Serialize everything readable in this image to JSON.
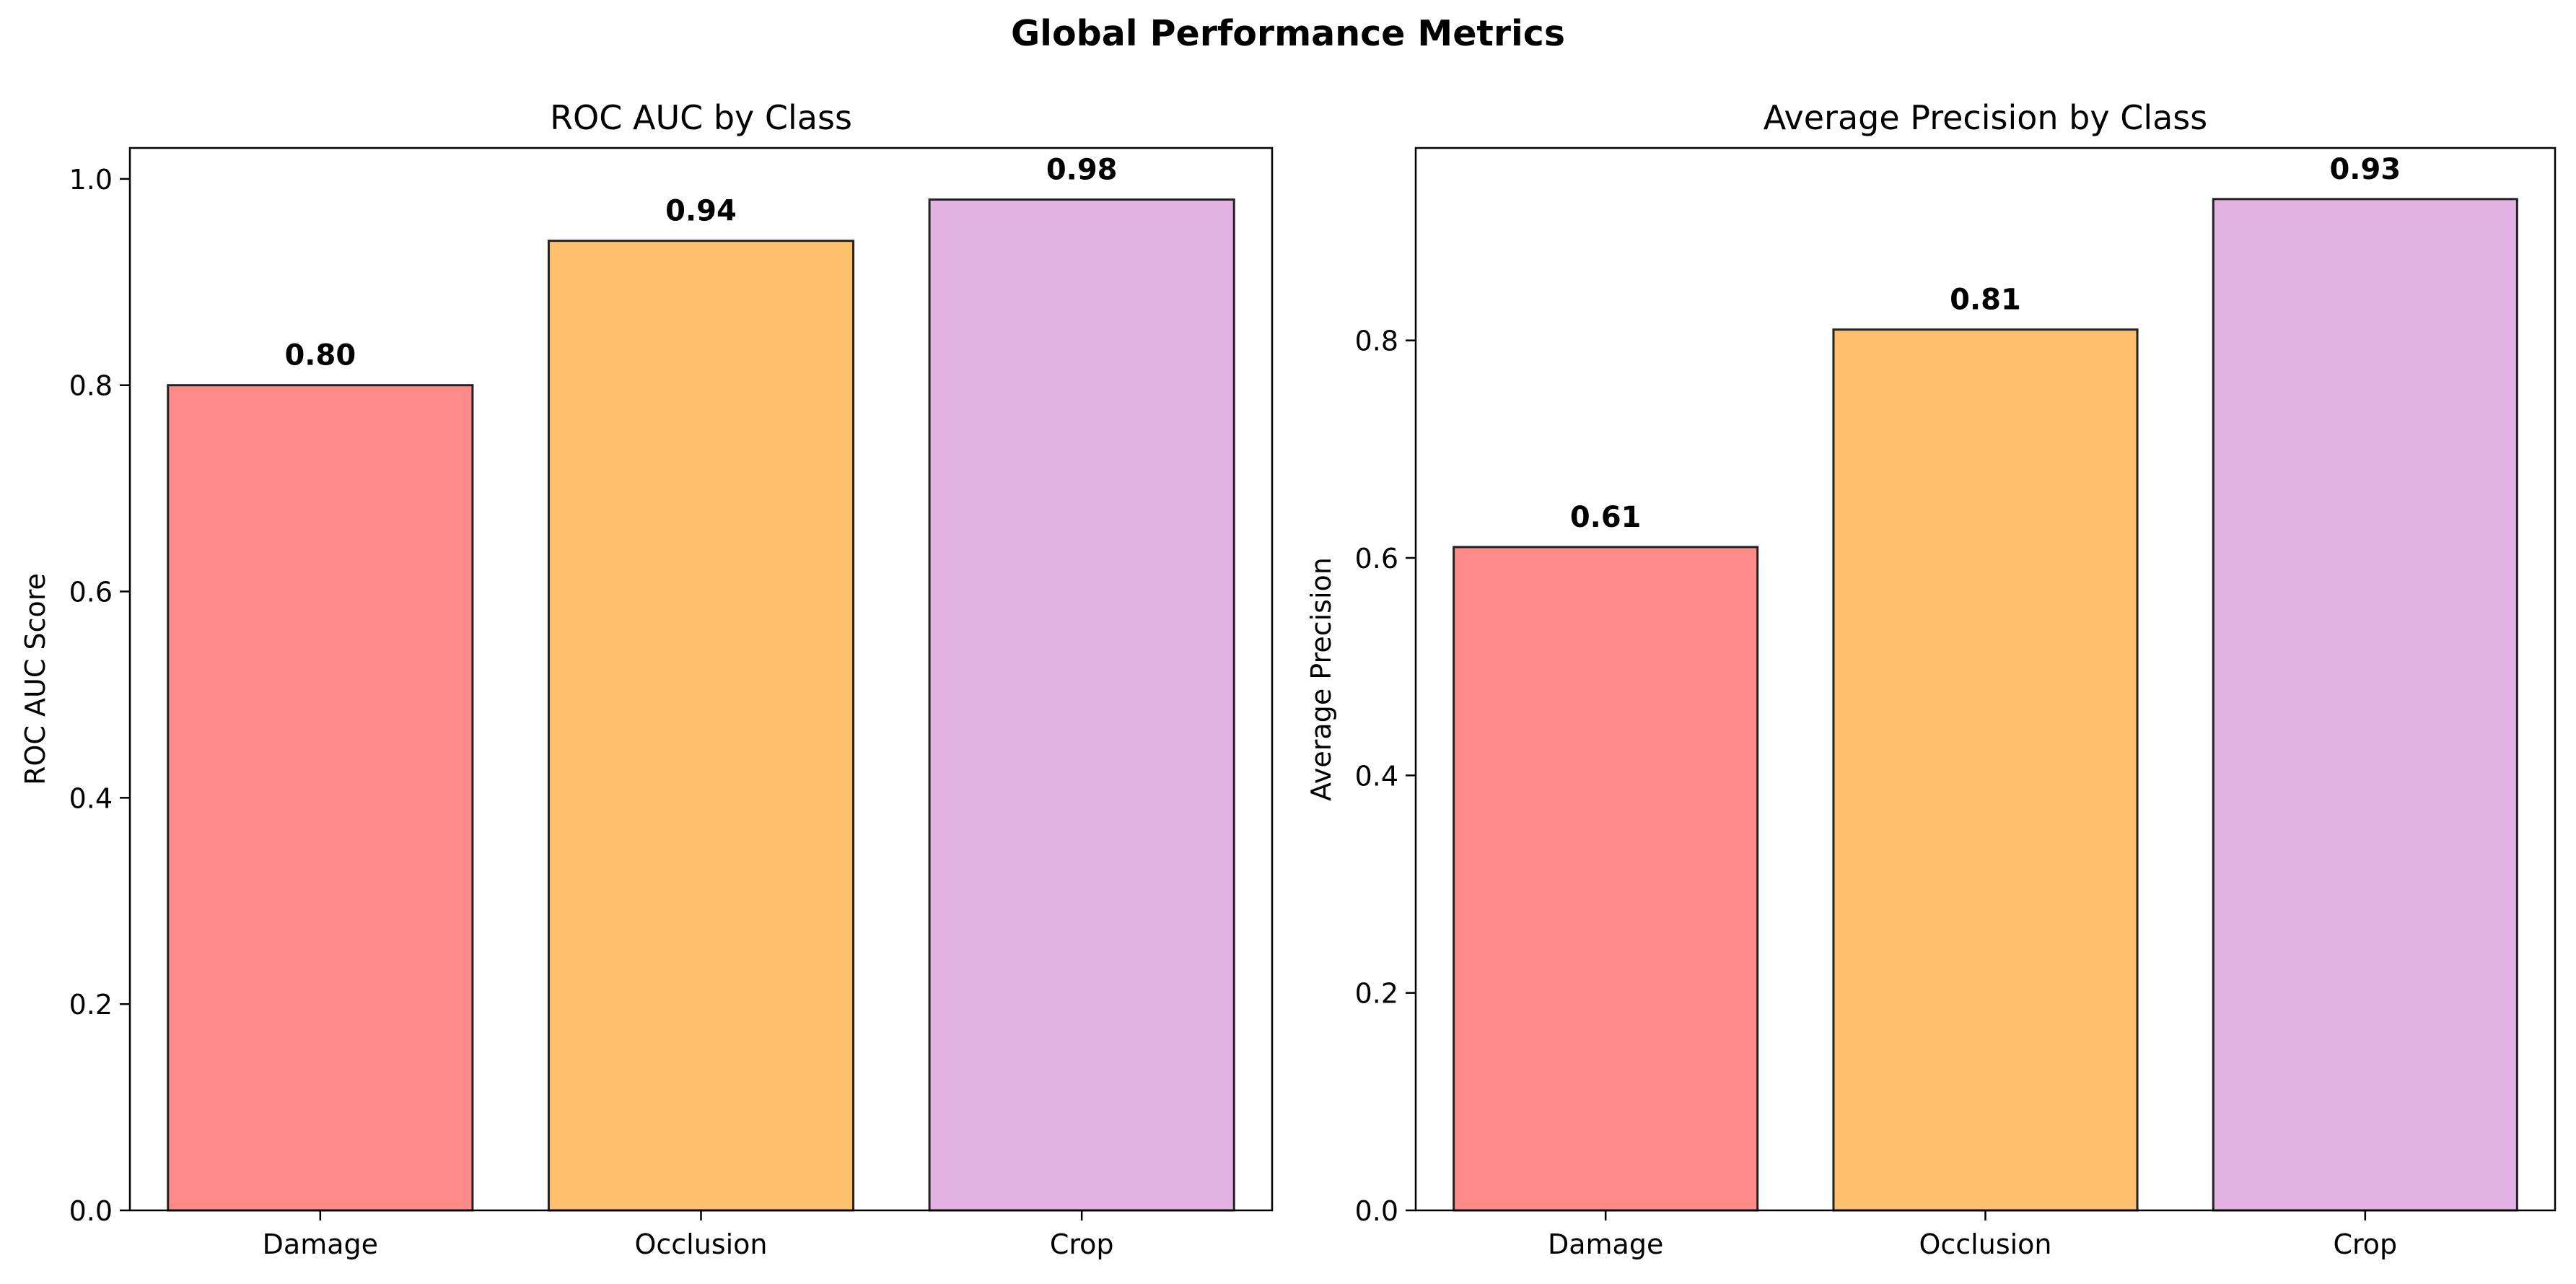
{
  "figure": {
    "suptitle": "Global Performance Metrics"
  },
  "chart_data": [
    {
      "type": "bar",
      "title": "ROC AUC by Class",
      "xlabel": "",
      "ylabel": "ROC AUC Score",
      "categories": [
        "Damage",
        "Occlusion",
        "Crop"
      ],
      "values": [
        0.8,
        0.94,
        0.98
      ],
      "value_labels": [
        "0.80",
        "0.94",
        "0.98"
      ],
      "colors": [
        "#ff8a8a",
        "#fdc16e",
        "#e2b3e2"
      ],
      "ylim": [
        0,
        1.03
      ],
      "yticks": [
        0.0,
        0.2,
        0.4,
        0.6,
        0.8,
        1.0
      ],
      "ytick_labels": [
        "0.0",
        "0.2",
        "0.4",
        "0.6",
        "0.8",
        "1.0"
      ],
      "grid": false,
      "legend": "none"
    },
    {
      "type": "bar",
      "title": "Average Precision by Class",
      "xlabel": "",
      "ylabel": "Average Precision",
      "categories": [
        "Damage",
        "Occlusion",
        "Crop"
      ],
      "values": [
        0.61,
        0.81,
        0.93
      ],
      "value_labels": [
        "0.61",
        "0.81",
        "0.93"
      ],
      "colors": [
        "#ff8a8a",
        "#fdc16e",
        "#e2b3e2"
      ],
      "ylim": [
        0,
        0.977
      ],
      "yticks": [
        0.0,
        0.2,
        0.4,
        0.6,
        0.8
      ],
      "ytick_labels": [
        "0.0",
        "0.2",
        "0.4",
        "0.6",
        "0.8"
      ],
      "grid": false,
      "legend": "none"
    }
  ]
}
